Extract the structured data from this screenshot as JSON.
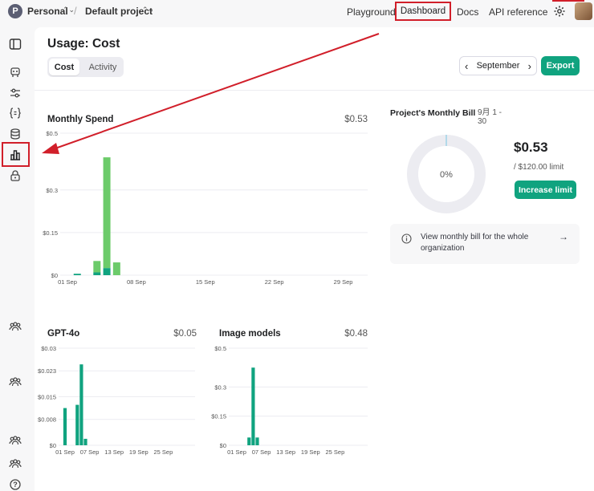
{
  "topbar": {
    "org_initial": "P",
    "org_name": "Personal",
    "project_name": "Default project",
    "nav": [
      "Playground",
      "Dashboard",
      "Docs",
      "API reference"
    ]
  },
  "sidebar": {
    "icons": [
      "sidebar-toggle-icon",
      "assistant-icon",
      "sliders-icon",
      "braces-icon",
      "database-icon",
      "bar-chart-icon",
      "lock-icon",
      "team-icon",
      "team-icon",
      "team-icon",
      "team-icon",
      "help-icon"
    ],
    "help_glyph": "?"
  },
  "page": {
    "title": "Usage: Cost",
    "tabs": [
      "Cost",
      "Activity"
    ],
    "month": "September",
    "export_label": "Export"
  },
  "monthly_spend": {
    "title": "Monthly Spend",
    "total": "$0.53"
  },
  "gpt4o": {
    "title": "GPT-4o",
    "total": "$0.05"
  },
  "image_models": {
    "title": "Image models",
    "total": "$0.48"
  },
  "bill": {
    "title": "Project's Monthly Bill",
    "date_range": "9月 1 - 30",
    "percent": "0%",
    "amount": "$0.53",
    "limit": "/ $120.00 limit",
    "increase_label": "Increase limit",
    "org_bill_label": "View monthly bill for the whole organization"
  },
  "colors": {
    "accent": "#10a37f",
    "accent_light": "#6ccb6a",
    "annotation": "#d11f2a"
  },
  "chart_data": [
    {
      "type": "bar",
      "title": "Monthly Spend",
      "x_tick_labels": [
        "01 Sep",
        "08 Sep",
        "15 Sep",
        "22 Sep",
        "29 Sep"
      ],
      "y_tick_labels": [
        "$0",
        "$0.15",
        "$0.3",
        "$0.5"
      ],
      "ylim": [
        0,
        0.5
      ],
      "stacked": true,
      "categories": [
        "02 Sep",
        "04 Sep",
        "05 Sep",
        "06 Sep"
      ],
      "series": [
        {
          "color": "#10a37f",
          "values": [
            0.005,
            0.01,
            0.025,
            0.0
          ]
        },
        {
          "color": "#6ccb6a",
          "values": [
            0.0,
            0.04,
            0.39,
            0.045
          ]
        }
      ]
    },
    {
      "type": "bar",
      "title": "GPT-4o",
      "x_tick_labels": [
        "01 Sep",
        "07 Sep",
        "13 Sep",
        "19 Sep",
        "25 Sep"
      ],
      "y_tick_labels": [
        "$0",
        "$0.008",
        "$0.015",
        "$0.023",
        "$0.03"
      ],
      "ylim": [
        0,
        0.03
      ],
      "categories": [
        "01 Sep",
        "04 Sep",
        "05 Sep",
        "06 Sep"
      ],
      "values": [
        0.0115,
        0.0125,
        0.025,
        0.002
      ]
    },
    {
      "type": "bar",
      "title": "Image models",
      "x_tick_labels": [
        "01 Sep",
        "07 Sep",
        "13 Sep",
        "19 Sep",
        "25 Sep"
      ],
      "y_tick_labels": [
        "$0",
        "$0.15",
        "$0.3",
        "$0.5"
      ],
      "ylim": [
        0,
        0.5
      ],
      "categories": [
        "04 Sep",
        "05 Sep",
        "06 Sep"
      ],
      "values": [
        0.04,
        0.4,
        0.04
      ]
    }
  ]
}
